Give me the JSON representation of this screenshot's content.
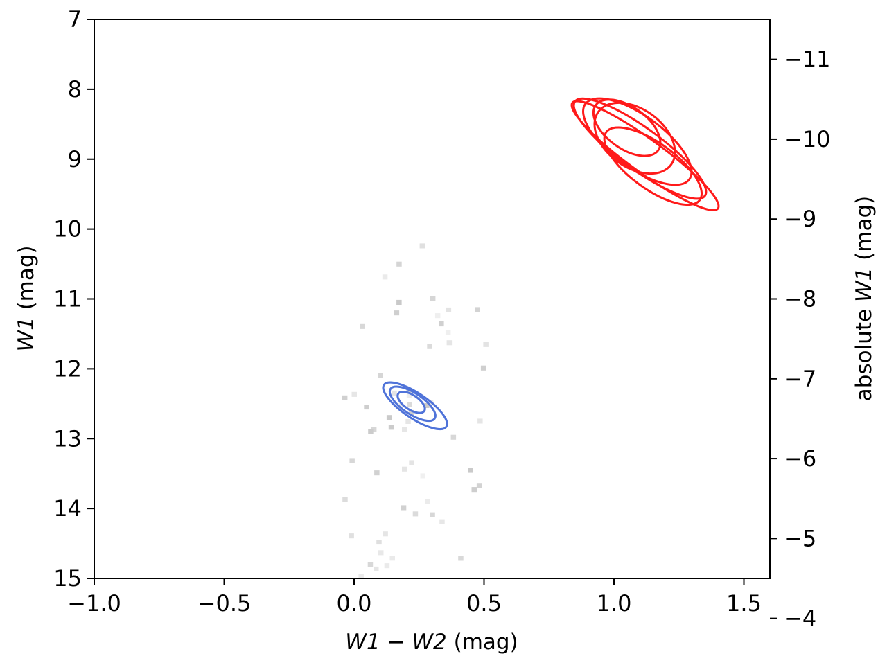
{
  "chart_data": {
    "type": "scatter",
    "title": "",
    "xlabel": {
      "parts": [
        {
          "text": "W",
          "italic": true
        },
        {
          "text": "1",
          "italic": true
        },
        {
          "text": " − ",
          "italic": false
        },
        {
          "text": "W",
          "italic": true
        },
        {
          "text": "2",
          "italic": true
        },
        {
          "text": " (mag)",
          "italic": false
        }
      ]
    },
    "ylabel": {
      "parts": [
        {
          "text": "W",
          "italic": true
        },
        {
          "text": "1",
          "italic": true
        },
        {
          "text": " (mag)",
          "italic": false
        }
      ]
    },
    "y2label": {
      "parts": [
        {
          "text": "absolute ",
          "italic": false
        },
        {
          "text": "W",
          "italic": true
        },
        {
          "text": "1",
          "italic": true
        },
        {
          "text": " (mag)",
          "italic": false
        }
      ]
    },
    "xlim": [
      -1.0,
      1.6
    ],
    "ylim": [
      15,
      7
    ],
    "y2lim": [
      -4.5,
      -11.5
    ],
    "inverted_y": true,
    "grid": false,
    "x_ticks": [
      -1.0,
      -0.5,
      0.0,
      0.5,
      1.0,
      1.5
    ],
    "x_tick_labels": [
      "−1.0",
      "−0.5",
      "0.0",
      "0.5",
      "1.0",
      "1.5"
    ],
    "y_ticks": [
      7,
      8,
      9,
      10,
      11,
      12,
      13,
      14,
      15
    ],
    "y_tick_labels": [
      "7",
      "8",
      "9",
      "10",
      "11",
      "12",
      "13",
      "14",
      "15"
    ],
    "y2_ticks": [
      -11,
      -10,
      -9,
      -8,
      -7,
      -6,
      -5,
      -4
    ],
    "y2_tick_labels": [
      "−11",
      "−10",
      "−9",
      "−8",
      "−7",
      "−6",
      "−5",
      "−4"
    ],
    "density": {
      "name": "",
      "type": "2d-histogram",
      "colormap": "greys",
      "bin_width_x": 0.02,
      "bin_height_y": 0.07,
      "ridge": [
        {
          "y": 9.5,
          "x": -0.08,
          "sigma": 0.04,
          "weight": 0.05
        },
        {
          "y": 10.0,
          "x": -0.08,
          "sigma": 0.045,
          "weight": 0.1
        },
        {
          "y": 10.5,
          "x": -0.1,
          "sigma": 0.05,
          "weight": 0.14
        },
        {
          "y": 11.0,
          "x": -0.12,
          "sigma": 0.055,
          "weight": 0.2
        },
        {
          "y": 11.5,
          "x": -0.13,
          "sigma": 0.055,
          "weight": 0.33
        },
        {
          "y": 12.0,
          "x": -0.15,
          "sigma": 0.05,
          "weight": 0.55
        },
        {
          "y": 12.5,
          "x": -0.16,
          "sigma": 0.05,
          "weight": 0.9
        },
        {
          "y": 13.0,
          "x": -0.17,
          "sigma": 0.055,
          "weight": 1.0
        },
        {
          "y": 13.5,
          "x": -0.18,
          "sigma": 0.06,
          "weight": 0.95
        },
        {
          "y": 14.0,
          "x": -0.19,
          "sigma": 0.075,
          "weight": 0.85
        },
        {
          "y": 14.5,
          "x": -0.21,
          "sigma": 0.09,
          "weight": 0.8
        },
        {
          "y": 15.0,
          "x": -0.22,
          "sigma": 0.1,
          "weight": 0.75
        }
      ],
      "wing": [
        {
          "y": 13.5,
          "x": -0.35,
          "sigma": 0.06,
          "weight": 0.2
        },
        {
          "y": 14.0,
          "x": -0.4,
          "sigma": 0.09,
          "weight": 0.35
        },
        {
          "y": 14.5,
          "x": -0.5,
          "sigma": 0.14,
          "weight": 0.4
        },
        {
          "y": 15.0,
          "x": -0.55,
          "sigma": 0.18,
          "weight": 0.4
        }
      ]
    },
    "series": [
      {
        "name": "",
        "type": "contour",
        "color": "#ff1a1a",
        "ellipses": [
          {
            "cx": 1.12,
            "cy": 8.95,
            "a": 0.28,
            "b": 0.016,
            "slope": 2.7
          },
          {
            "cx": 1.1,
            "cy": 8.85,
            "a": 0.25,
            "b": 0.02,
            "slope": 2.7
          },
          {
            "cx": 1.09,
            "cy": 8.75,
            "a": 0.2,
            "b": 0.025,
            "slope": 2.7
          },
          {
            "cx": 1.08,
            "cy": 8.7,
            "a": 0.14,
            "b": 0.028,
            "slope": 2.7
          },
          {
            "cx": 1.15,
            "cy": 9.1,
            "a": 0.18,
            "b": 0.022,
            "slope": 2.7
          },
          {
            "cx": 1.05,
            "cy": 8.55,
            "a": 0.12,
            "b": 0.02,
            "slope": 2.7
          }
        ]
      },
      {
        "name": "",
        "type": "contour",
        "color": "#4f73d9",
        "ellipses": [
          {
            "cx": 0.235,
            "cy": 12.53,
            "a": 0.12,
            "b": 0.012,
            "slope": 2.5
          },
          {
            "cx": 0.225,
            "cy": 12.5,
            "a": 0.085,
            "b": 0.01,
            "slope": 2.5
          },
          {
            "cx": 0.22,
            "cy": 12.48,
            "a": 0.05,
            "b": 0.007,
            "slope": 2.5
          }
        ]
      }
    ]
  }
}
